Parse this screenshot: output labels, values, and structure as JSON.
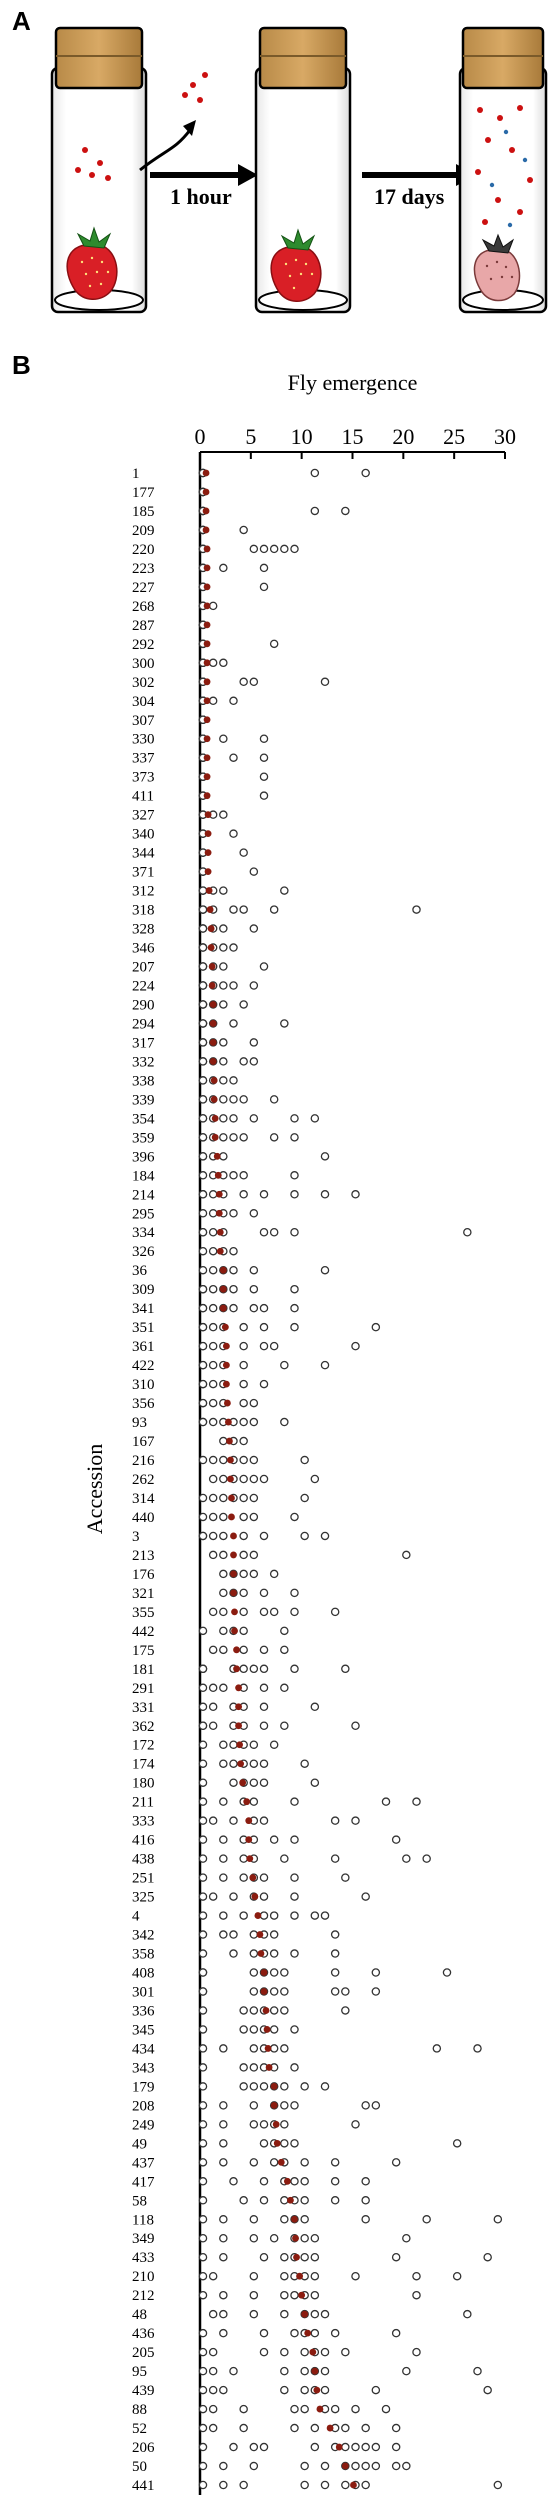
{
  "panel_a": {
    "letter": "A",
    "arrows": [
      "1 hour",
      "17 days"
    ]
  },
  "panel_b": {
    "letter": "B",
    "colors": {
      "mean_dot": "#8b1c10",
      "circle": "#333333"
    },
    "chart_data": {
      "type": "scatter",
      "title": "",
      "xlabel": "Fly emergence",
      "ylabel": "Accession",
      "xlim": [
        0,
        30
      ],
      "xticks": [
        0,
        5,
        10,
        15,
        20,
        25,
        30
      ],
      "grid": false,
      "categories": [
        "1",
        "177",
        "185",
        "209",
        "220",
        "223",
        "227",
        "268",
        "287",
        "292",
        "300",
        "302",
        "304",
        "307",
        "330",
        "337",
        "373",
        "411",
        "327",
        "340",
        "344",
        "371",
        "312",
        "318",
        "328",
        "346",
        "207",
        "224",
        "290",
        "294",
        "317",
        "332",
        "338",
        "339",
        "354",
        "359",
        "396",
        "184",
        "214",
        "295",
        "334",
        "326",
        "36",
        "309",
        "341",
        "351",
        "361",
        "422",
        "310",
        "356",
        "93",
        "167",
        "216",
        "262",
        "314",
        "440",
        "3",
        "213",
        "176",
        "321",
        "355",
        "442",
        "175",
        "181",
        "291",
        "331",
        "362",
        "172",
        "174",
        "180",
        "211",
        "333",
        "416",
        "438",
        "251",
        "325",
        "4",
        "342",
        "358",
        "408",
        "301",
        "336",
        "345",
        "434",
        "343",
        "179",
        "208",
        "249",
        "49",
        "437",
        "417",
        "58",
        "118",
        "349",
        "433",
        "210",
        "212",
        "48",
        "436",
        "205",
        "95",
        "439",
        "88",
        "52",
        "206",
        "50",
        "441"
      ],
      "means": [
        0.3,
        0.3,
        0.3,
        0.3,
        0.4,
        0.4,
        0.4,
        0.4,
        0.4,
        0.4,
        0.4,
        0.4,
        0.4,
        0.4,
        0.4,
        0.4,
        0.4,
        0.4,
        0.5,
        0.5,
        0.5,
        0.5,
        0.6,
        0.7,
        0.8,
        0.8,
        0.9,
        0.9,
        1.0,
        1.0,
        1.0,
        1.0,
        1.1,
        1.1,
        1.2,
        1.2,
        1.4,
        1.5,
        1.6,
        1.6,
        1.7,
        1.7,
        2.0,
        2.0,
        2.0,
        2.2,
        2.3,
        2.3,
        2.3,
        2.4,
        2.5,
        2.6,
        2.7,
        2.7,
        2.8,
        2.8,
        3.0,
        3.0,
        3.0,
        3.0,
        3.1,
        3.1,
        3.3,
        3.3,
        3.5,
        3.5,
        3.5,
        3.6,
        3.7,
        3.9,
        4.3,
        4.5,
        4.5,
        4.6,
        4.9,
        5.1,
        5.4,
        5.6,
        5.7,
        6.0,
        6.0,
        6.2,
        6.3,
        6.4,
        6.5,
        7.0,
        7.0,
        7.2,
        7.3,
        7.7,
        8.3,
        8.6,
        9.0,
        9.1,
        9.2,
        9.5,
        9.7,
        10.0,
        10.3,
        10.8,
        11.0,
        11.2,
        11.5,
        12.5,
        13.4,
        14.0,
        14.8
      ],
      "replicates": [
        [
          0,
          0,
          0,
          11,
          16
        ],
        [
          0,
          0,
          0,
          0,
          0
        ],
        [
          0,
          0,
          0,
          0,
          11,
          14
        ],
        [
          0,
          0,
          0,
          0,
          4
        ],
        [
          0,
          0,
          0,
          5,
          6,
          7,
          8,
          9
        ],
        [
          0,
          0,
          0,
          2,
          6
        ],
        [
          0,
          0,
          0,
          0,
          6
        ],
        [
          0,
          0,
          0,
          0,
          1
        ],
        [
          0,
          0,
          0,
          0,
          0
        ],
        [
          0,
          0,
          0,
          0,
          7
        ],
        [
          0,
          0,
          0,
          1,
          2
        ],
        [
          0,
          0,
          0,
          4,
          5,
          12
        ],
        [
          0,
          0,
          0,
          1,
          3
        ],
        [
          0,
          0,
          0,
          0,
          0
        ],
        [
          0,
          0,
          0,
          2,
          6
        ],
        [
          0,
          0,
          0,
          3,
          6
        ],
        [
          0,
          0,
          0,
          0,
          6
        ],
        [
          0,
          0,
          0,
          0,
          6
        ],
        [
          0,
          0,
          0,
          0,
          1,
          2
        ],
        [
          0,
          0,
          0,
          0,
          3
        ],
        [
          0,
          0,
          0,
          0,
          4
        ],
        [
          0,
          0,
          0,
          0,
          5
        ],
        [
          0,
          0,
          0,
          1,
          2,
          8
        ],
        [
          0,
          0,
          0,
          1,
          3,
          4,
          7,
          21
        ],
        [
          0,
          0,
          0,
          1,
          2,
          5
        ],
        [
          0,
          0,
          0,
          1,
          2,
          3
        ],
        [
          0,
          0,
          0,
          1,
          2,
          6
        ],
        [
          0,
          0,
          0,
          1,
          2,
          3,
          5
        ],
        [
          0,
          0,
          0,
          1,
          2,
          4
        ],
        [
          0,
          0,
          0,
          1,
          3,
          8
        ],
        [
          0,
          0,
          1,
          2,
          5
        ],
        [
          0,
          0,
          1,
          2,
          4,
          5
        ],
        [
          0,
          0,
          1,
          2,
          3
        ],
        [
          0,
          0,
          1,
          2,
          3,
          4,
          7
        ],
        [
          0,
          0,
          1,
          2,
          3,
          5,
          9,
          11
        ],
        [
          0,
          0,
          1,
          2,
          3,
          4,
          7,
          9
        ],
        [
          0,
          0,
          1,
          2,
          12
        ],
        [
          0,
          1,
          2,
          3,
          4,
          9
        ],
        [
          0,
          0,
          1,
          2,
          4,
          6,
          9,
          12,
          15
        ],
        [
          0,
          1,
          2,
          3,
          5
        ],
        [
          0,
          0,
          1,
          2,
          6,
          7,
          9,
          26
        ],
        [
          0,
          1,
          2,
          3
        ],
        [
          0,
          1,
          2,
          3,
          5,
          12
        ],
        [
          0,
          0,
          1,
          2,
          3,
          5,
          9
        ],
        [
          0,
          0,
          1,
          2,
          3,
          5,
          6,
          9
        ],
        [
          0,
          0,
          1,
          2,
          4,
          6,
          9,
          17
        ],
        [
          0,
          0,
          1,
          2,
          4,
          6,
          7,
          15
        ],
        [
          0,
          0,
          1,
          2,
          4,
          8,
          12
        ],
        [
          0,
          0,
          1,
          2,
          4,
          6
        ],
        [
          0,
          0,
          1,
          2,
          4,
          5
        ],
        [
          0,
          0,
          1,
          2,
          3,
          4,
          5,
          8
        ],
        [
          2,
          3,
          4
        ],
        [
          0,
          1,
          2,
          3,
          4,
          5,
          10
        ],
        [
          1,
          2,
          3,
          4,
          5,
          6,
          11
        ],
        [
          0,
          1,
          2,
          3,
          4,
          5,
          10
        ],
        [
          0,
          1,
          2,
          4,
          5,
          9
        ],
        [
          0,
          0,
          1,
          2,
          4,
          6,
          10,
          12
        ],
        [
          1,
          2,
          4,
          5,
          20
        ],
        [
          2,
          3,
          4,
          5,
          7
        ],
        [
          2,
          3,
          4,
          6,
          9
        ],
        [
          1,
          2,
          4,
          6,
          7,
          9,
          13
        ],
        [
          0,
          2,
          3,
          4,
          8
        ],
        [
          1,
          2,
          4,
          6,
          8
        ],
        [
          0,
          0,
          3,
          4,
          5,
          6,
          9,
          14
        ],
        [
          0,
          1,
          2,
          4,
          6,
          8
        ],
        [
          0,
          1,
          3,
          4,
          6,
          11
        ],
        [
          0,
          0,
          1,
          3,
          4,
          6,
          8,
          15
        ],
        [
          0,
          2,
          3,
          4,
          5,
          7
        ],
        [
          0,
          2,
          3,
          4,
          5,
          6,
          10
        ],
        [
          0,
          3,
          4,
          5,
          6,
          11
        ],
        [
          0,
          2,
          4,
          5,
          9,
          18,
          21
        ],
        [
          0,
          1,
          3,
          5,
          6,
          13,
          15
        ],
        [
          0,
          2,
          4,
          5,
          7,
          9,
          19
        ],
        [
          0,
          2,
          4,
          5,
          8,
          13,
          20,
          22
        ],
        [
          0,
          2,
          4,
          5,
          6,
          9,
          14
        ],
        [
          0,
          1,
          3,
          5,
          6,
          9,
          16
        ],
        [
          0,
          2,
          4,
          6,
          7,
          9,
          11,
          12
        ],
        [
          0,
          2,
          3,
          5,
          6,
          7,
          13
        ],
        [
          0,
          3,
          5,
          6,
          7,
          9,
          13
        ],
        [
          0,
          0,
          5,
          6,
          7,
          8,
          13,
          17,
          24
        ],
        [
          0,
          0,
          5,
          6,
          7,
          8,
          13,
          14,
          17
        ],
        [
          0,
          4,
          5,
          6,
          7,
          8,
          14
        ],
        [
          0,
          4,
          5,
          6,
          7,
          9
        ],
        [
          0,
          2,
          5,
          6,
          7,
          8,
          23,
          27
        ],
        [
          0,
          4,
          5,
          6,
          7,
          9
        ],
        [
          0,
          4,
          5,
          6,
          7,
          8,
          10,
          12
        ],
        [
          0,
          2,
          5,
          7,
          8,
          9,
          16,
          17
        ],
        [
          0,
          2,
          5,
          6,
          7,
          8,
          15
        ],
        [
          0,
          2,
          6,
          7,
          8,
          9,
          25
        ],
        [
          0,
          2,
          5,
          7,
          8,
          10,
          13,
          19
        ],
        [
          0,
          3,
          6,
          8,
          9,
          10,
          13,
          16
        ],
        [
          0,
          4,
          6,
          8,
          9,
          10,
          13,
          16
        ],
        [
          0,
          2,
          5,
          8,
          9,
          10,
          16,
          22,
          29
        ],
        [
          0,
          2,
          5,
          7,
          9,
          10,
          11,
          20
        ],
        [
          0,
          2,
          6,
          8,
          9,
          10,
          11,
          19,
          28
        ],
        [
          0,
          1,
          5,
          8,
          9,
          10,
          11,
          15,
          21,
          25
        ],
        [
          0,
          2,
          5,
          8,
          9,
          10,
          11,
          21
        ],
        [
          1,
          2,
          5,
          8,
          10,
          11,
          12,
          26
        ],
        [
          0,
          2,
          6,
          9,
          10,
          11,
          13,
          19
        ],
        [
          0,
          1,
          6,
          8,
          10,
          11,
          12,
          14,
          21
        ],
        [
          0,
          1,
          3,
          8,
          10,
          11,
          12,
          20,
          27
        ],
        [
          0,
          1,
          2,
          8,
          10,
          11,
          12,
          17,
          28
        ],
        [
          0,
          1,
          4,
          9,
          10,
          12,
          13,
          15,
          18
        ],
        [
          0,
          1,
          4,
          9,
          11,
          13,
          14,
          16,
          19
        ],
        [
          0,
          3,
          5,
          6,
          11,
          13,
          14,
          15,
          16,
          17,
          19
        ],
        [
          0,
          2,
          5,
          10,
          12,
          14,
          15,
          16,
          17,
          19,
          20
        ],
        [
          0,
          2,
          4,
          10,
          12,
          14,
          15,
          16,
          29
        ]
      ]
    }
  }
}
